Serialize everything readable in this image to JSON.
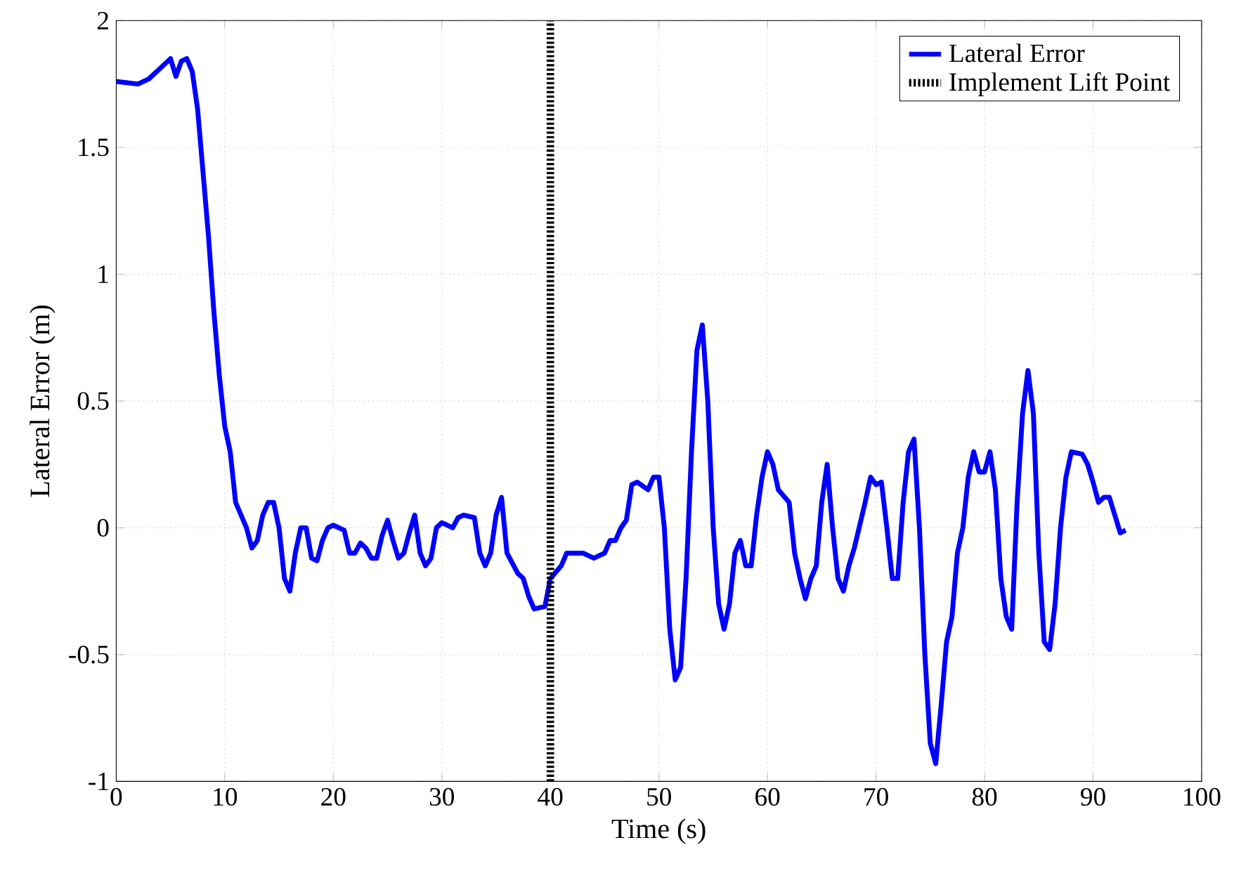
{
  "chart_data": {
    "type": "line",
    "xlabel": "Time (s)",
    "ylabel": "Lateral Error (m)",
    "xlim": [
      0,
      100
    ],
    "ylim": [
      -1,
      2
    ],
    "xticks": [
      0,
      10,
      20,
      30,
      40,
      50,
      60,
      70,
      80,
      90,
      100
    ],
    "yticks": [
      -1,
      -0.5,
      0,
      0.5,
      1,
      1.5,
      2
    ],
    "grid": true,
    "legend": "top right",
    "series": [
      {
        "name": "Lateral Error",
        "color": "#0000ff",
        "x": [
          0,
          2,
          3,
          4,
          5,
          5.5,
          6,
          6.5,
          7,
          7.5,
          8,
          8.5,
          9,
          9.5,
          10,
          10.5,
          11,
          12,
          12.5,
          13,
          13.5,
          14,
          14.5,
          15,
          15.5,
          16,
          16.5,
          17,
          17.5,
          18,
          18.5,
          19,
          19.5,
          20,
          21,
          21.5,
          22,
          22.5,
          23,
          23.5,
          24,
          24.5,
          25,
          25.5,
          26,
          26.5,
          27,
          27.5,
          28,
          28.5,
          29,
          29.5,
          30,
          31,
          31.5,
          32,
          33,
          33.5,
          34,
          34.5,
          35,
          35.5,
          36,
          37,
          37.5,
          38,
          38.5,
          39.5,
          40,
          41,
          41.5,
          42,
          43,
          44,
          45,
          45.5,
          46,
          46.5,
          47,
          47.5,
          48,
          49,
          49.5,
          50,
          50.5,
          51,
          51.5,
          52,
          52.5,
          53,
          53.5,
          54,
          54.5,
          55,
          55.5,
          56,
          56.5,
          57,
          57.5,
          58,
          58.5,
          59,
          59.5,
          60,
          60.5,
          61,
          62,
          62.5,
          63,
          63.5,
          64,
          64.5,
          65,
          65.5,
          66,
          66.5,
          67,
          67.5,
          68,
          69,
          69.5,
          70,
          70.5,
          71,
          71.5,
          72,
          72.5,
          73,
          73.5,
          74,
          74.5,
          75,
          75.5,
          76,
          76.5,
          77,
          77.5,
          78,
          78.5,
          79,
          79.5,
          80,
          80.5,
          81,
          81.5,
          82,
          82.5,
          83,
          83.5,
          84,
          84.5,
          85,
          85.5,
          86,
          86.5,
          87,
          87.5,
          88,
          89,
          89.5,
          90,
          90.5,
          91,
          91.5,
          92,
          92.5,
          93
        ],
        "values": [
          1.76,
          1.75,
          1.77,
          1.81,
          1.85,
          1.78,
          1.84,
          1.85,
          1.8,
          1.65,
          1.4,
          1.15,
          0.85,
          0.6,
          0.4,
          0.3,
          0.1,
          0.0,
          -0.08,
          -0.05,
          0.05,
          0.1,
          0.1,
          0.0,
          -0.2,
          -0.25,
          -0.1,
          0.0,
          0.0,
          -0.12,
          -0.13,
          -0.05,
          0.0,
          0.01,
          -0.01,
          -0.1,
          -0.1,
          -0.06,
          -0.08,
          -0.12,
          -0.12,
          -0.03,
          0.03,
          -0.05,
          -0.12,
          -0.1,
          -0.02,
          0.05,
          -0.1,
          -0.15,
          -0.12,
          0.0,
          0.02,
          0.0,
          0.04,
          0.05,
          0.04,
          -0.1,
          -0.15,
          -0.1,
          0.05,
          0.12,
          -0.1,
          -0.18,
          -0.2,
          -0.27,
          -0.32,
          -0.31,
          -0.2,
          -0.15,
          -0.1,
          -0.1,
          -0.1,
          -0.12,
          -0.1,
          -0.05,
          -0.05,
          0.0,
          0.03,
          0.17,
          0.18,
          0.15,
          0.2,
          0.2,
          0.0,
          -0.4,
          -0.6,
          -0.55,
          -0.2,
          0.3,
          0.7,
          0.8,
          0.5,
          0.0,
          -0.3,
          -0.4,
          -0.3,
          -0.1,
          -0.05,
          -0.15,
          -0.15,
          0.05,
          0.2,
          0.3,
          0.25,
          0.15,
          0.1,
          -0.1,
          -0.2,
          -0.28,
          -0.2,
          -0.15,
          0.1,
          0.25,
          0.0,
          -0.2,
          -0.25,
          -0.15,
          -0.08,
          0.1,
          0.2,
          0.17,
          0.18,
          0.0,
          -0.2,
          -0.2,
          0.1,
          0.3,
          0.35,
          0.0,
          -0.5,
          -0.85,
          -0.93,
          -0.7,
          -0.45,
          -0.35,
          -0.1,
          0.0,
          0.2,
          0.3,
          0.22,
          0.22,
          0.3,
          0.15,
          -0.2,
          -0.35,
          -0.4,
          0.1,
          0.45,
          0.62,
          0.45,
          -0.1,
          -0.45,
          -0.48,
          -0.3,
          0.0,
          0.2,
          0.3,
          0.29,
          0.25,
          0.18,
          0.1,
          0.12,
          0.12,
          0.05,
          -0.02,
          -0.01
        ]
      }
    ],
    "ref_lines": [
      {
        "axis": "x",
        "value": 40,
        "label": "Implement Lift Point",
        "color": "#000000",
        "line_style": "dotted"
      }
    ]
  }
}
